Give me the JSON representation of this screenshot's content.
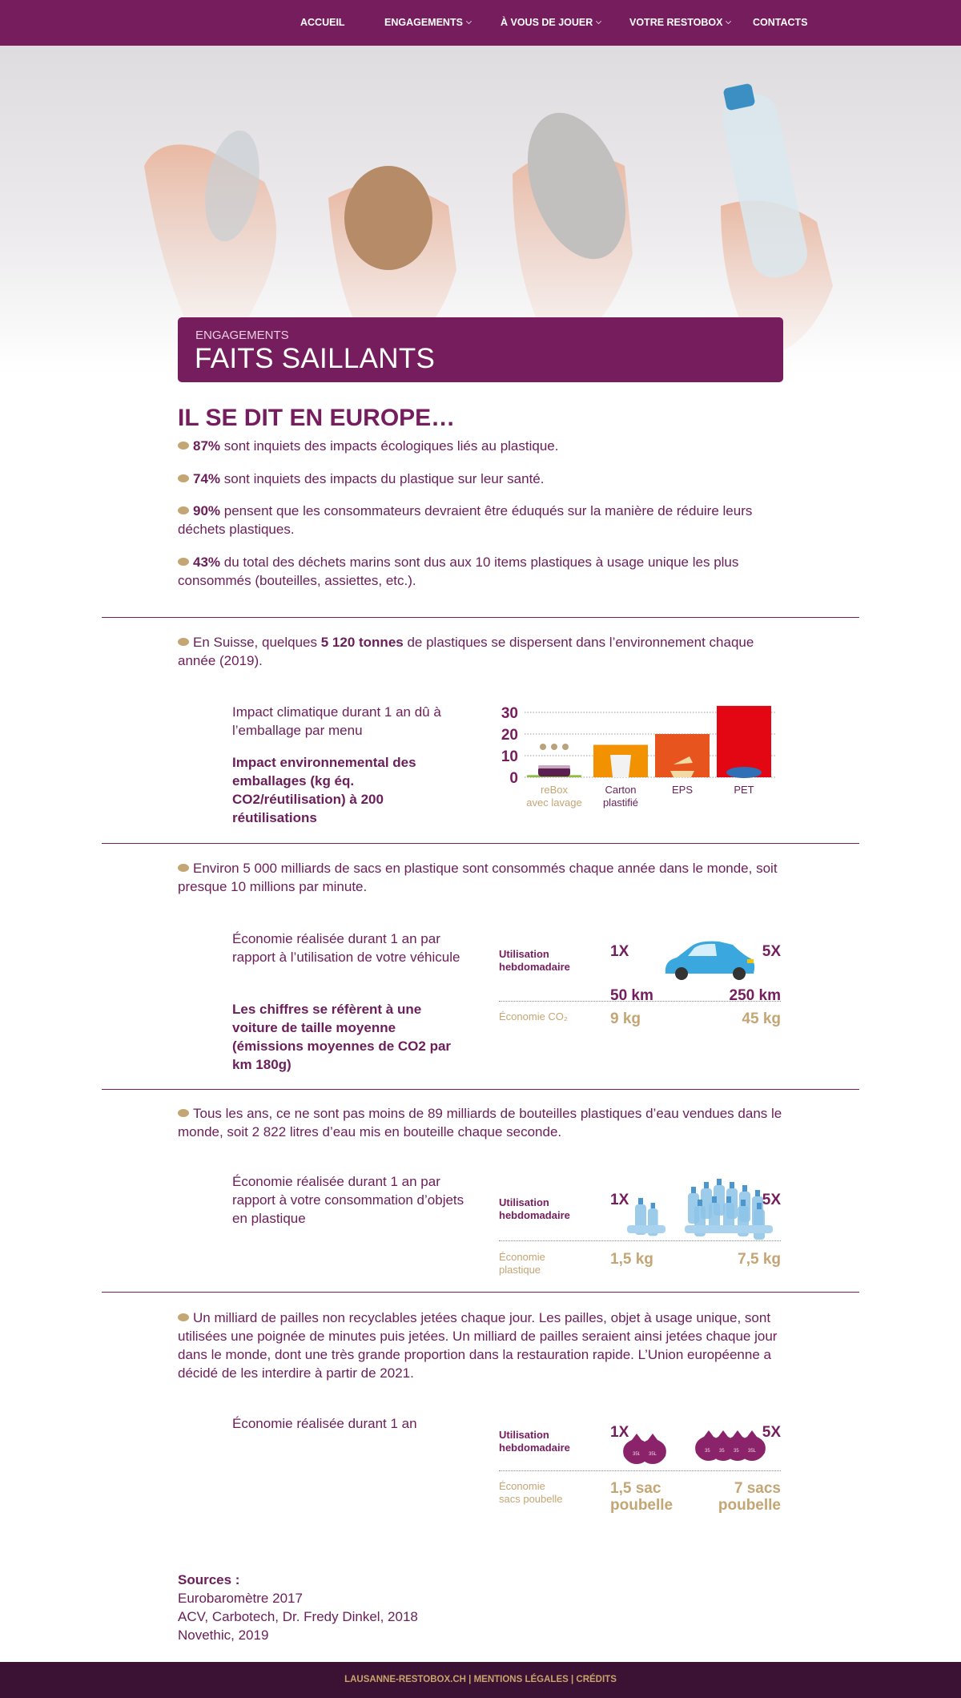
{
  "nav": [
    "ACCUEIL",
    "ENGAGEMENTS",
    "À VOUS DE JOUER",
    "VOTRE RESTOBOX",
    "CONTACTS"
  ],
  "banner": {
    "kicker": "ENGAGEMENTS",
    "title": "FAITS SAILLANTS"
  },
  "intro": {
    "heading": "IL SE DIT EN EUROPE…",
    "bullets": [
      {
        "bold": "87%",
        "text": "sont inquiets des impacts écologiques liés au plastique."
      },
      {
        "bold": "74%",
        "text": "sont inquiets des impacts du plastique sur leur santé."
      },
      {
        "bold": "90%",
        "text": "pensent que les consommateurs devraient être éduqués sur  la manière de réduire leurs déchets plastiques."
      },
      {
        "bold": "43%",
        "text": "du total des déchets marins sont dus aux 10 items plastiques à usage unique les plus consommés (bouteilles, assiettes, etc.)."
      }
    ]
  },
  "sections": [
    {
      "lead": [
        {
          "text": "En Suisse, quelques"
        },
        {
          "text": "5 120 tonnes",
          "bold": true
        },
        {
          "text": "de plastiques se dispersent dans l’environnement chaque année (2019)."
        }
      ],
      "note": "Impact climatique durant 1 an dû à l’emballage par menu",
      "note_bold": "Impact environnemental des emballages (kg éq. CO2/réutilisation) à 200 réutilisations",
      "chart": {
        "type": "bar",
        "categories": [
          [
            "reBox",
            "avec lavage"
          ],
          [
            "Carton",
            "plastifié"
          ],
          [
            "EPS"
          ],
          [
            "PET"
          ]
        ],
        "values": [
          1,
          15,
          20,
          33
        ],
        "colors": [
          "#8cbf3f",
          "#f39200",
          "#e8541e",
          "#e30613"
        ],
        "label_colors": [
          "#c4a574",
          "#6b1e5a",
          "#6b1e5a",
          "#6b1e5a"
        ],
        "ylim": [
          0,
          35
        ],
        "yticks": [
          0,
          10,
          20,
          30
        ],
        "grid": true
      }
    },
    {
      "lead": [
        {
          "text": "Environ 5 000 milliards de sacs en plastique sont consommés chaque année dans le monde, soit presque 10 millions par minute."
        }
      ],
      "note": "Économie réalisée durant 1 an par rapport à l’utilisation de votre véhicule",
      "note_bold": "Les chiffres se réfèrent à une voiture de taille moyenne (émissions moyennes de CO2 par km 180g)",
      "info": {
        "usage_label": "Utilisation hebdomadaire",
        "low": "1X",
        "high": "5X",
        "low_distance": "50 km",
        "high_distance": "250 km",
        "saving_label": "Économie CO₂",
        "low_saving": "9 kg",
        "high_saving": "45 kg"
      }
    },
    {
      "lead": [
        {
          "text": "Tous les ans, ce ne sont pas moins de 89 milliards de bouteilles plastiques d’eau vendues dans le monde, soit 2 822 litres d’eau mis en bouteille chaque seconde."
        }
      ],
      "note": "Économie réalisée durant 1 an par rapport à votre consommation d’objets en plastique",
      "info": {
        "usage_label": "Utilisation hebdomadaire",
        "low": "1X",
        "high": "5X",
        "saving_label": "Économie plastique",
        "low_saving": "1,5 kg",
        "high_saving": "7,5 kg"
      }
    },
    {
      "lead": [
        {
          "text": "Un milliard de pailles non recyclables jetées chaque jour. Les pailles, objet à usage unique, sont utilisées une poignée de minutes puis jetées. Un milliard de pailles seraient ainsi jetées chaque jour dans le monde, dont une très grande proportion dans la restauration rapide. L’Union européenne a décidé de les interdire à partir de 2021."
        }
      ],
      "note": "Économie réalisée durant 1 an",
      "info": {
        "usage_label": "Utilisation hebdomadaire",
        "low": "1X",
        "high": "5X",
        "saving_label": "Économie sacs poubelle",
        "low_saving": "1,5 sac poubelle",
        "high_saving": "7 sacs poubelle",
        "bag_label": "35L"
      }
    }
  ],
  "sources": {
    "title": "Sources :",
    "items": [
      "Eurobaromètre 2017",
      "ACV, Carbotech, Dr. Fredy Dinkel, 2018",
      "Novethic, 2019"
    ]
  },
  "footer": {
    "links": [
      "LAUSANNE-RESTOBOX.CH",
      "MENTIONS LÉGALES",
      "CRÉDITS"
    ],
    "separator": "|"
  }
}
